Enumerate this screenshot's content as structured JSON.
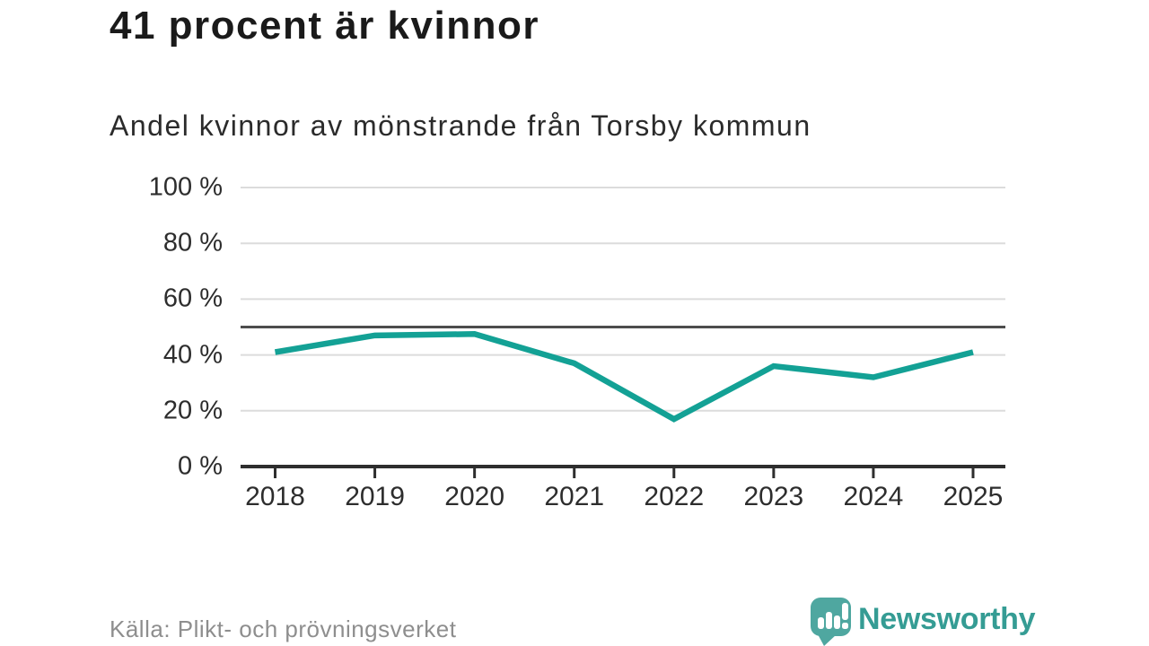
{
  "header": {
    "title": "41 procent är kvinnor",
    "subtitle": "Andel kvinnor av mönstrande från Torsby kommun"
  },
  "footer": {
    "source": "Källa: Plikt- och prövningsverket",
    "brand": "Newsworthy"
  },
  "colors": {
    "line": "#13A195",
    "grid": "#DCDCDC",
    "reference": "#4D4D4D",
    "axis": "#2E2E2E",
    "brand_icon": "#4FA7A0",
    "brand_text": "#359C94"
  },
  "chart_data": {
    "type": "line",
    "title": "41 procent är kvinnor",
    "subtitle": "Andel kvinnor av mönstrande från Torsby kommun",
    "x": [
      "2018",
      "2019",
      "2020",
      "2021",
      "2022",
      "2023",
      "2024",
      "2025"
    ],
    "series": [
      {
        "name": "Andel kvinnor av mönstrande",
        "values": [
          41,
          47,
          47.5,
          37,
          17,
          36,
          32,
          41
        ]
      }
    ],
    "xlabel": "",
    "ylabel": "",
    "ylim": [
      0,
      100
    ],
    "yticks": [
      0,
      20,
      40,
      60,
      80,
      100
    ],
    "ytick_labels": [
      "0 %",
      "20 %",
      "40 %",
      "60 %",
      "80 %",
      "100 %"
    ],
    "reference_line": 50,
    "grid": "horizontal",
    "legend": "none",
    "line_color": "#13A195",
    "source": "Källa: Plikt- och prövningsverket"
  }
}
